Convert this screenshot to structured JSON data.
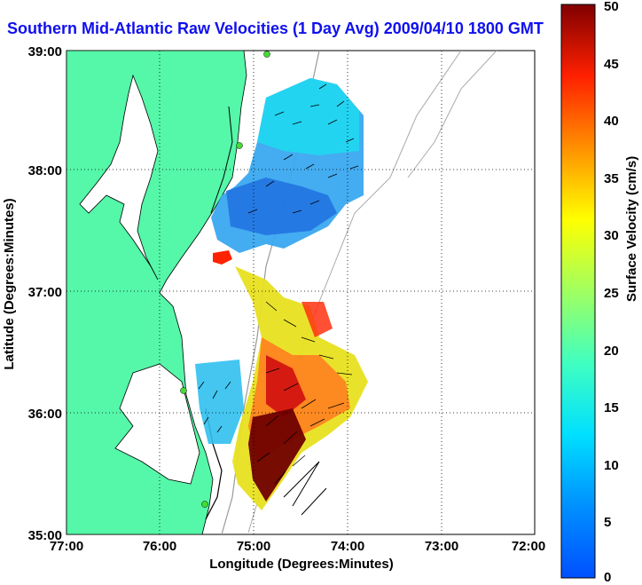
{
  "title": "Southern Mid-Atlantic Raw Velocities (1 Day Avg) 2009/04/10 1800 GMT",
  "x_axis": {
    "label": "Longitude (Degrees:Minutes)",
    "ticks": [
      "77:00",
      "76:00",
      "75:00",
      "74:00",
      "73:00",
      "72:00"
    ]
  },
  "y_axis": {
    "label": "Latitude (Degrees:Minutes)",
    "ticks": [
      "39:00",
      "38:00",
      "37:00",
      "36:00",
      "35:00"
    ]
  },
  "colorbar": {
    "label": "Surface Velocity (cm/s)",
    "ticks": [
      "50",
      "45",
      "40",
      "35",
      "30",
      "25",
      "20",
      "15",
      "10",
      "5",
      "0"
    ],
    "min": 0,
    "max": 50,
    "colormap": "jet"
  },
  "colors": {
    "title": "#1010ee",
    "land": "#55f7a8",
    "water": "#ffffff",
    "station": "#44dd33"
  }
}
